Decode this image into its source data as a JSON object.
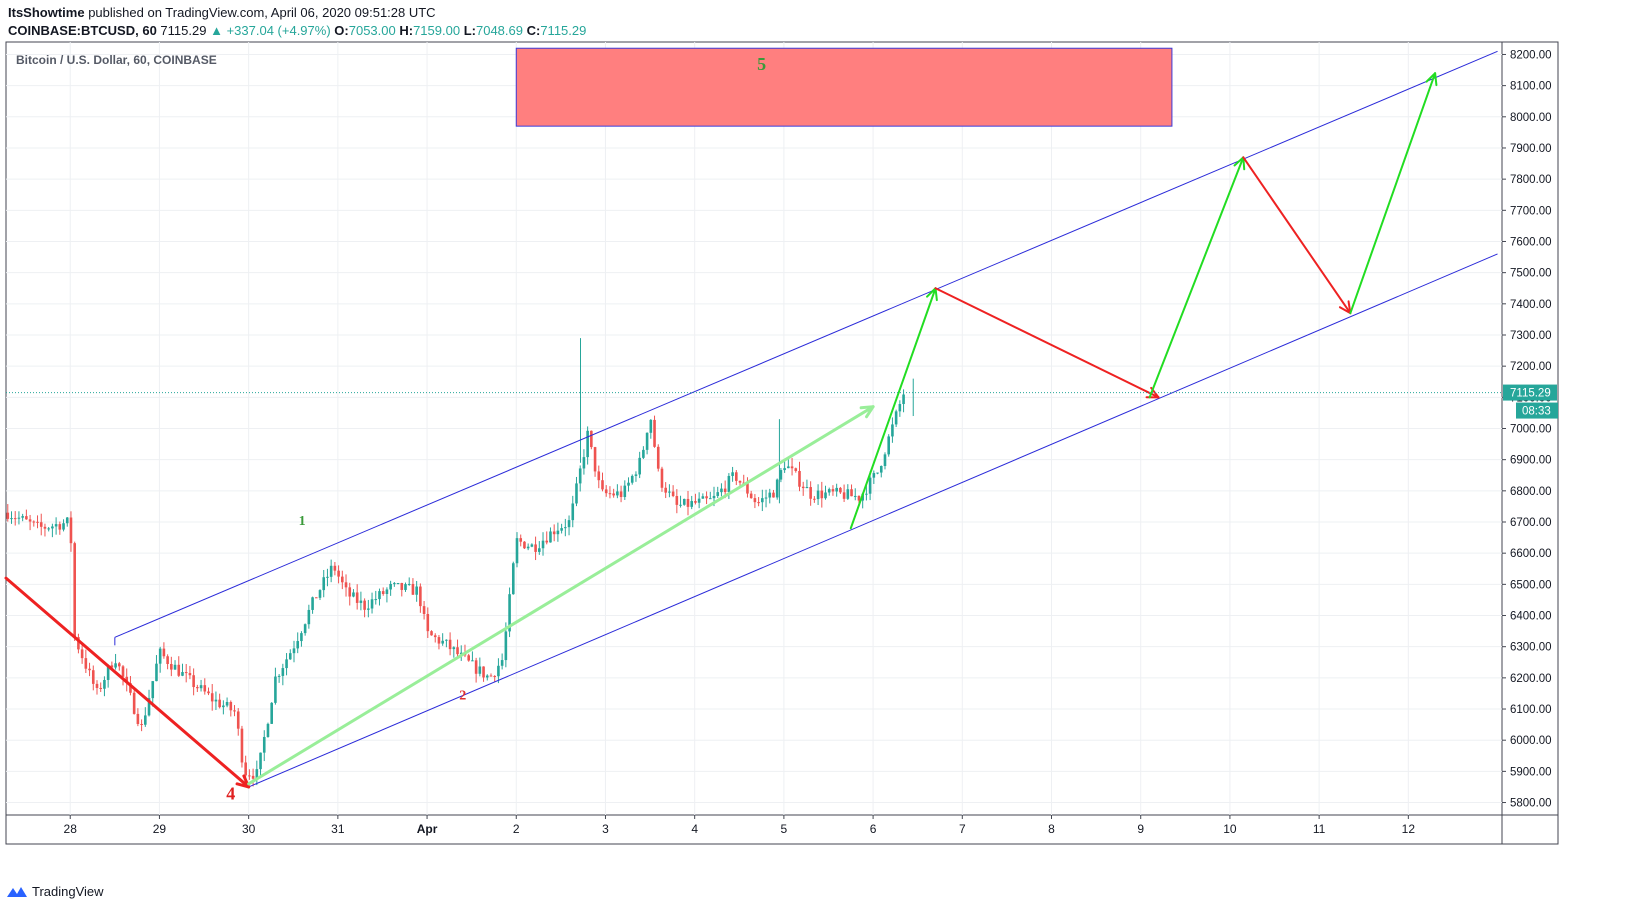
{
  "header": {
    "author": "ItsShowtime",
    "published": "published on TradingView.com, April 06, 2020 09:51:28 UTC",
    "symbol": "COINBASE:BTCUSD, 60",
    "last": "7115.29",
    "change_arrow": "▲",
    "change": "+337.04 (+4.97%)",
    "o_label": "O:",
    "o_value": "7053.00",
    "h_label": "H:",
    "h_value": "7159.00",
    "l_label": "L:",
    "l_value": "7048.69",
    "c_label": "C:",
    "c_value": "7115.29"
  },
  "pane_title": "Bitcoin / U.S. Dollar, 60, COINBASE",
  "footer": {
    "brand": "TradingView",
    "logo_icon": "tradingview-logo-icon"
  },
  "colors": {
    "up": "#26a69a",
    "down": "#ef5350",
    "channel": "#2b2bd9",
    "arrow_up": "#22dd22",
    "arrow_down": "#ee2222",
    "wave_path": "#99ee99",
    "target_box": "#ff7f7f",
    "price_line": "#26a69a"
  },
  "chart_data": {
    "type": "candlestick",
    "title": "Bitcoin / U.S. Dollar, 60, COINBASE",
    "x_tick_labels": [
      "28",
      "29",
      "30",
      "31",
      "Apr",
      "2",
      "3",
      "4",
      "5",
      "6",
      "7",
      "8",
      "9",
      "10",
      "11",
      "12"
    ],
    "y_ticks": [
      5800,
      5900,
      6000,
      6100,
      6200,
      6300,
      6400,
      6500,
      6600,
      6700,
      6800,
      6900,
      7000,
      7100,
      7200,
      7300,
      7400,
      7500,
      7600,
      7700,
      7800,
      7900,
      8000,
      8100,
      8200
    ],
    "y_tick_labels": [
      "5800.00",
      "5900.00",
      "6000.00",
      "6100.00",
      "6200.00",
      "6300.00",
      "6400.00",
      "6500.00",
      "6600.00",
      "6700.00",
      "6800.00",
      "6900.00",
      "7000.00",
      "7100.00",
      "7200.00",
      "7300.00",
      "7400.00",
      "7500.00",
      "7600.00",
      "7700.00",
      "7800.00",
      "7900.00",
      "8000.00",
      "8100.00",
      "8200.00"
    ],
    "ylim": [
      5760,
      8240
    ],
    "xlim": [
      -0.72,
      16.05
    ],
    "last_price": 7115.29,
    "last_price_label": "7115.29",
    "countdown_label": "08:33",
    "path_points": [
      [
        -0.7,
        6730
      ],
      [
        -0.35,
        6680
      ],
      [
        0.0,
        6700
      ],
      [
        0.05,
        6330
      ],
      [
        0.3,
        6150
      ],
      [
        0.5,
        6270
      ],
      [
        0.8,
        6040
      ],
      [
        1.0,
        6280
      ],
      [
        1.3,
        6200
      ],
      [
        1.6,
        6130
      ],
      [
        1.85,
        6090
      ],
      [
        1.95,
        5900
      ],
      [
        2.1,
        5890
      ],
      [
        2.3,
        6200
      ],
      [
        2.5,
        6300
      ],
      [
        2.75,
        6460
      ],
      [
        2.95,
        6560
      ],
      [
        3.1,
        6470
      ],
      [
        3.3,
        6430
      ],
      [
        3.6,
        6490
      ],
      [
        3.9,
        6480
      ],
      [
        4.0,
        6340
      ],
      [
        4.2,
        6310
      ],
      [
        4.45,
        6250
      ],
      [
        4.7,
        6200
      ],
      [
        4.85,
        6260
      ],
      [
        5.0,
        6640
      ],
      [
        5.2,
        6620
      ],
      [
        5.45,
        6680
      ],
      [
        5.6,
        6700
      ],
      [
        5.8,
        6980
      ],
      [
        5.95,
        6790
      ],
      [
        6.2,
        6790
      ],
      [
        6.4,
        6900
      ],
      [
        6.5,
        7050
      ],
      [
        6.6,
        6840
      ],
      [
        6.8,
        6750
      ],
      [
        7.0,
        6760
      ],
      [
        7.2,
        6770
      ],
      [
        7.45,
        6850
      ],
      [
        7.7,
        6760
      ],
      [
        7.9,
        6800
      ],
      [
        8.0,
        6890
      ],
      [
        8.3,
        6790
      ],
      [
        8.6,
        6790
      ],
      [
        8.85,
        6780
      ],
      [
        9.05,
        6860
      ],
      [
        9.2,
        6990
      ],
      [
        9.35,
        7120
      ]
    ],
    "spike_wicks": [
      {
        "x": 5.72,
        "high": 7290,
        "low": 6890
      },
      {
        "x": 7.95,
        "high": 7030,
        "low": 6760
      },
      {
        "x": 9.45,
        "high": 7160,
        "low": 7040
      }
    ],
    "channel_upper": [
      [
        0.5,
        6330
      ],
      [
        16.0,
        8210
      ]
    ],
    "channel_lower": [
      [
        2.0,
        5850
      ],
      [
        16.0,
        7560
      ]
    ],
    "channel_upper_segment": [
      [
        0.5,
        6330
      ],
      [
        3.0,
        6630
      ]
    ],
    "arrows": [
      {
        "kind": "down",
        "from": [
          -0.72,
          6520
        ],
        "to": [
          2.0,
          5850
        ],
        "width": 3
      },
      {
        "kind": "wave",
        "from": [
          2.0,
          5860
        ],
        "to": [
          9.0,
          7070
        ],
        "width": 3
      },
      {
        "kind": "up",
        "from": [
          8.75,
          6680
        ],
        "to": [
          9.7,
          7450
        ],
        "width": 2
      },
      {
        "kind": "down",
        "from": [
          9.7,
          7450
        ],
        "to": [
          12.2,
          7100
        ],
        "width": 2
      },
      {
        "kind": "up",
        "from": [
          12.1,
          7100
        ],
        "to": [
          13.15,
          7870
        ],
        "width": 2
      },
      {
        "kind": "down",
        "from": [
          13.15,
          7870
        ],
        "to": [
          14.35,
          7370
        ],
        "width": 2
      },
      {
        "kind": "up",
        "from": [
          14.35,
          7370
        ],
        "to": [
          15.3,
          8140
        ],
        "width": 2
      }
    ],
    "target_box": {
      "x0": 5.0,
      "x1": 12.35,
      "y0": 7970,
      "y1": 8220
    },
    "wave_labels": [
      {
        "text": "1",
        "x": 2.6,
        "y": 6690,
        "color": "#3a9a3a"
      },
      {
        "text": "2",
        "x": 4.4,
        "y": 6130,
        "color": "#e03030"
      },
      {
        "text": "4",
        "x": 1.8,
        "y": 5810,
        "color": "#e02020"
      },
      {
        "text": "5",
        "x": 7.75,
        "y": 8150,
        "color": "#3a9a3a"
      }
    ]
  }
}
